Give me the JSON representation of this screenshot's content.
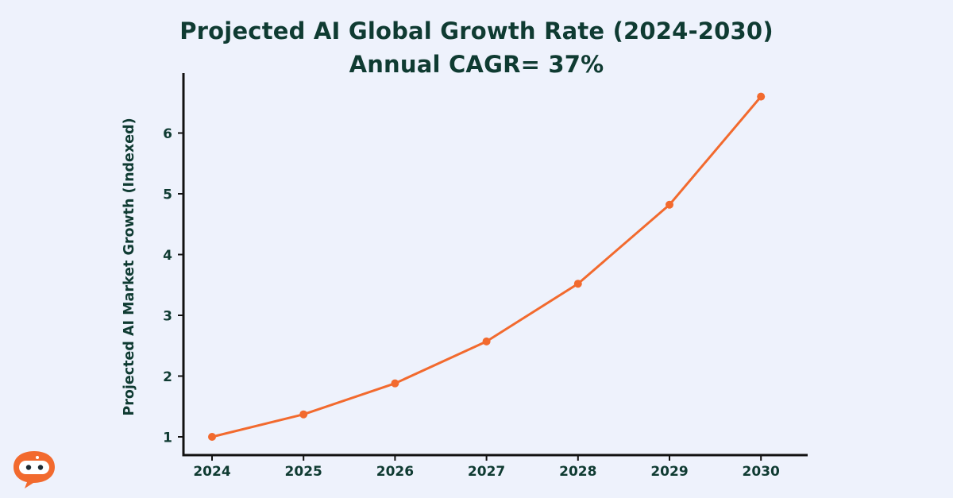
{
  "chart_data": {
    "type": "line",
    "title": "Projected AI Global Growth Rate (2024-2030)",
    "subtitle": "Annual CAGR= 37%",
    "xlabel": "",
    "ylabel": "Projected AI Market Growth (Indexed)",
    "categories": [
      "2024",
      "2025",
      "2026",
      "2027",
      "2028",
      "2029",
      "2030"
    ],
    "series": [
      {
        "name": "Projected AI Market Growth",
        "values": [
          1.0,
          1.37,
          1.88,
          2.57,
          3.52,
          4.82,
          6.6
        ]
      }
    ],
    "yticks": [
      1,
      2,
      3,
      4,
      5,
      6
    ],
    "ylim": [
      0.75,
      6.95
    ],
    "grid": false,
    "legend": "none",
    "line_color": "#f26a2e"
  },
  "logo": {
    "name": "mascot-logo",
    "color": "#f26a2e"
  }
}
